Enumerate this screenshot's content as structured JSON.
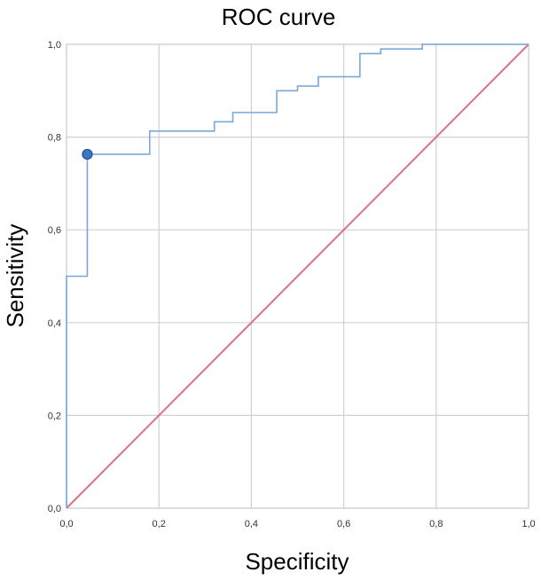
{
  "chart_data": {
    "type": "line",
    "title": "ROC curve",
    "xlabel": "Specificity",
    "ylabel": "Sensitivity",
    "xlim": [
      0,
      1
    ],
    "ylim": [
      0,
      1
    ],
    "grid": true,
    "x_ticks": [
      "0,0",
      "0,2",
      "0,4",
      "0,6",
      "0,8",
      "1,0"
    ],
    "y_ticks": [
      "0,0",
      "0,2",
      "0,4",
      "0,6",
      "0,8",
      "1,0"
    ],
    "series": [
      {
        "color": "#7aa8d9",
        "step": true,
        "x": [
          0.0,
          0.0,
          0.045,
          0.045,
          0.18,
          0.18,
          0.32,
          0.32,
          0.36,
          0.36,
          0.455,
          0.455,
          0.5,
          0.5,
          0.545,
          0.545,
          0.635,
          0.635,
          0.68,
          0.68,
          0.77,
          0.77,
          1.0
        ],
        "y": [
          0.0,
          0.5,
          0.5,
          0.763,
          0.763,
          0.813,
          0.813,
          0.833,
          0.833,
          0.853,
          0.853,
          0.9,
          0.9,
          0.91,
          0.91,
          0.93,
          0.93,
          0.98,
          0.98,
          0.99,
          0.99,
          1.0,
          1.0
        ]
      },
      {
        "color": "#d9728a",
        "x": [
          0,
          1
        ],
        "y": [
          0,
          1
        ]
      }
    ],
    "marker": {
      "x": 0.045,
      "y": 0.763,
      "color": "#3b78c4"
    }
  }
}
